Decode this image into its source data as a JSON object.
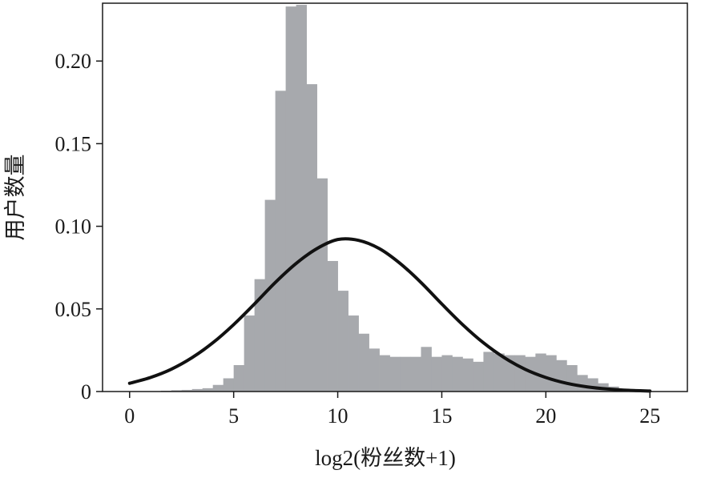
{
  "chart_data": {
    "type": "bar",
    "title": "",
    "xlabel": "log2(粉丝数+1)",
    "ylabel": "用户数量",
    "xlim": [
      -1.3,
      26.8
    ],
    "ylim": [
      0,
      0.235
    ],
    "x_ticks": [
      {
        "value": 0,
        "label": "0"
      },
      {
        "value": 5,
        "label": "5"
      },
      {
        "value": 10,
        "label": "10"
      },
      {
        "value": 15,
        "label": "15"
      },
      {
        "value": 20,
        "label": "20"
      },
      {
        "value": 25,
        "label": "25"
      }
    ],
    "y_ticks": [
      {
        "value": 0,
        "label": "0"
      },
      {
        "value": 0.05,
        "label": "0.05"
      },
      {
        "value": 0.1,
        "label": "0.10"
      },
      {
        "value": 0.15,
        "label": "0.15"
      },
      {
        "value": 0.2,
        "label": "0.20"
      }
    ],
    "grid": false,
    "bar_color": "#a7a9ad",
    "curve_color": "#111111",
    "histogram": {
      "bin_width": 0.5,
      "bins_start": [
        1.5,
        2,
        2.5,
        3,
        3.5,
        4,
        4.5,
        5,
        5.5,
        6,
        6.5,
        7,
        7.5,
        8,
        8.5,
        9,
        9.5,
        10,
        10.5,
        11,
        11.5,
        12,
        12.5,
        13,
        13.5,
        14,
        14.5,
        15,
        15.5,
        16,
        16.5,
        17,
        17.5,
        18,
        18.5,
        19,
        19.5,
        20,
        20.5,
        21,
        21.5,
        22,
        22.5,
        23
      ],
      "density": [
        0.0005,
        0.0008,
        0.001,
        0.0015,
        0.002,
        0.004,
        0.008,
        0.016,
        0.046,
        0.068,
        0.116,
        0.182,
        0.233,
        0.234,
        0.186,
        0.129,
        0.079,
        0.061,
        0.046,
        0.035,
        0.026,
        0.022,
        0.021,
        0.021,
        0.021,
        0.027,
        0.021,
        0.022,
        0.021,
        0.02,
        0.018,
        0.024,
        0.023,
        0.022,
        0.022,
        0.021,
        0.023,
        0.022,
        0.019,
        0.016,
        0.01,
        0.008,
        0.005,
        0.003
      ]
    },
    "series": [
      {
        "type": "line",
        "x": [
          0,
          1,
          2,
          3,
          4,
          5,
          6,
          7,
          8,
          9,
          10,
          11,
          12,
          13,
          14,
          15,
          16,
          17,
          18,
          19,
          20,
          21,
          22,
          23,
          24,
          25
        ],
        "y": [
          0.005,
          0.0085,
          0.0135,
          0.0205,
          0.0295,
          0.0405,
          0.053,
          0.066,
          0.0775,
          0.0865,
          0.092,
          0.0915,
          0.0865,
          0.0775,
          0.066,
          0.053,
          0.0405,
          0.0295,
          0.0205,
          0.0135,
          0.0085,
          0.005,
          0.0028,
          0.0015,
          0.0007,
          0.0003
        ]
      }
    ]
  }
}
